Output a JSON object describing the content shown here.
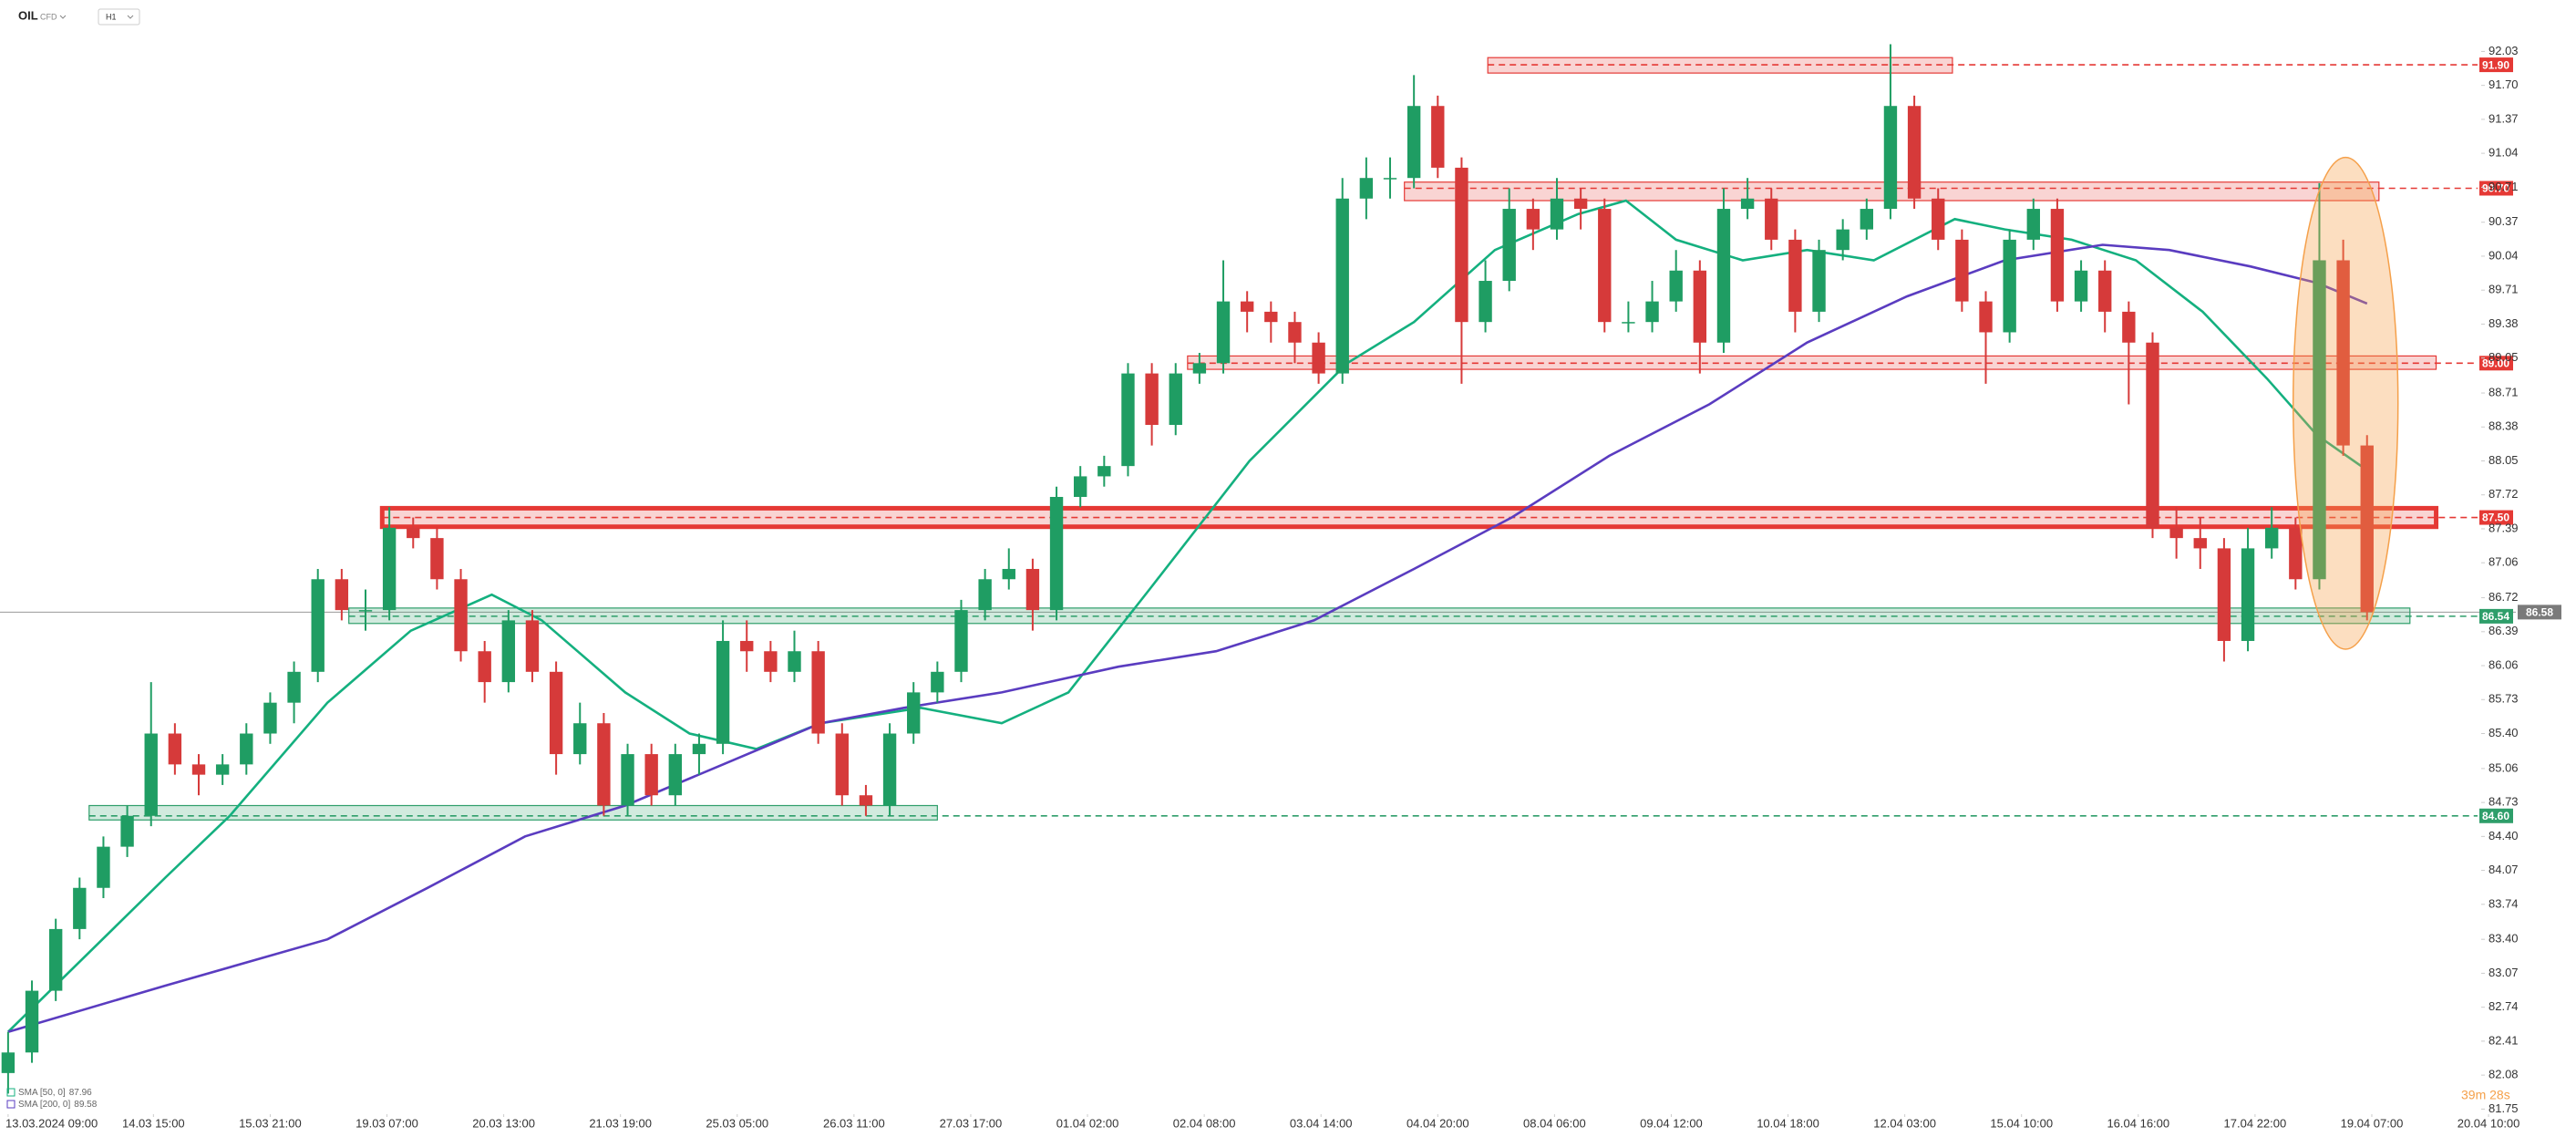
{
  "chart_data": {
    "type": "candlestick",
    "symbol": "OIL",
    "instrument_type": "CFD",
    "timeframe": "H1",
    "colors": {
      "up": "#1f9d63",
      "down": "#d63a3a"
    },
    "xlim": [
      -0.34,
      107.77
    ],
    "ylim": [
      81.7,
      92.53
    ],
    "xticks": [
      {
        "value": 0,
        "label": "13.03.2024 09:00"
      },
      {
        "value": 6.1,
        "label": "14.03 15:00"
      },
      {
        "value": 11.0,
        "label": "15.03 21:00"
      },
      {
        "value": 15.9,
        "label": "19.03 07:00"
      },
      {
        "value": 20.8,
        "label": "20.03 13:00"
      },
      {
        "value": 25.7,
        "label": "21.03 19:00"
      },
      {
        "value": 30.6,
        "label": "25.03 05:00"
      },
      {
        "value": 35.5,
        "label": "26.03 11:00"
      },
      {
        "value": 40.4,
        "label": "27.03 17:00"
      },
      {
        "value": 45.3,
        "label": "01.04 02:00"
      },
      {
        "value": 50.2,
        "label": "02.04 08:00"
      },
      {
        "value": 55.1,
        "label": "03.04 14:00"
      },
      {
        "value": 60.0,
        "label": "04.04 20:00"
      },
      {
        "value": 64.9,
        "label": "08.04 06:00"
      },
      {
        "value": 69.8,
        "label": "09.04 12:00"
      },
      {
        "value": 74.7,
        "label": "10.04 18:00"
      },
      {
        "value": 79.6,
        "label": "12.04 03:00"
      },
      {
        "value": 84.5,
        "label": "15.04 10:00"
      },
      {
        "value": 89.4,
        "label": "16.04 16:00"
      },
      {
        "value": 94.3,
        "label": "17.04 22:00"
      },
      {
        "value": 99.2,
        "label": "19.04 07:00"
      },
      {
        "value": 104.1,
        "label": "20.04 10:00"
      }
    ],
    "yticks": [
      92.03,
      {
        "value": 91.7,
        "label": "91.70"
      },
      91.37,
      91.04,
      90.71,
      90.37,
      90.04,
      89.71,
      89.38,
      89.05,
      88.71,
      88.38,
      88.05,
      87.72,
      87.39,
      87.06,
      86.72,
      86.39,
      86.06,
      85.73,
      {
        "value": 85.4,
        "label": "85.40"
      },
      85.06,
      84.73,
      {
        "value": 84.4,
        "label": "84.40"
      },
      84.07,
      83.74,
      {
        "value": 83.4,
        "label": "83.40"
      },
      83.07,
      82.74,
      82.41,
      82.08,
      81.75
    ],
    "candles": [
      [
        82.1,
        82.5,
        81.9,
        82.3
      ],
      [
        82.3,
        83.0,
        82.2,
        82.9
      ],
      [
        82.9,
        83.6,
        82.8,
        83.5
      ],
      [
        83.5,
        84.0,
        83.4,
        83.9
      ],
      [
        83.9,
        84.4,
        83.8,
        84.3
      ],
      [
        84.3,
        84.7,
        84.2,
        84.6
      ],
      [
        84.6,
        85.9,
        84.5,
        85.4
      ],
      [
        85.4,
        85.5,
        85.0,
        85.1
      ],
      [
        85.1,
        85.2,
        84.8,
        85.0
      ],
      [
        85.0,
        85.2,
        84.9,
        85.1
      ],
      [
        85.1,
        85.5,
        85.0,
        85.4
      ],
      [
        85.4,
        85.8,
        85.3,
        85.7
      ],
      [
        85.7,
        86.1,
        85.5,
        86.0
      ],
      [
        86.0,
        87.0,
        85.9,
        86.9
      ],
      [
        86.9,
        87.0,
        86.5,
        86.6
      ],
      [
        86.6,
        86.8,
        86.4,
        86.6
      ],
      [
        86.6,
        87.6,
        86.5,
        87.4
      ],
      [
        87.4,
        87.5,
        87.2,
        87.3
      ],
      [
        87.3,
        87.4,
        86.8,
        86.9
      ],
      [
        86.9,
        87.0,
        86.1,
        86.2
      ],
      [
        86.2,
        86.3,
        85.7,
        85.9
      ],
      [
        85.9,
        86.6,
        85.8,
        86.5
      ],
      [
        86.5,
        86.6,
        85.9,
        86.0
      ],
      [
        86.0,
        86.1,
        85.0,
        85.2
      ],
      [
        85.2,
        85.7,
        85.1,
        85.5
      ],
      [
        85.5,
        85.6,
        84.6,
        84.7
      ],
      [
        84.7,
        85.3,
        84.6,
        85.2
      ],
      [
        85.2,
        85.3,
        84.7,
        84.8
      ],
      [
        84.8,
        85.3,
        84.7,
        85.2
      ],
      [
        85.2,
        85.4,
        85.0,
        85.3
      ],
      [
        85.3,
        86.5,
        85.2,
        86.3
      ],
      [
        86.3,
        86.5,
        86.0,
        86.2
      ],
      [
        86.2,
        86.3,
        85.9,
        86.0
      ],
      [
        86.0,
        86.4,
        85.9,
        86.2
      ],
      [
        86.2,
        86.3,
        85.3,
        85.4
      ],
      [
        85.4,
        85.5,
        84.7,
        84.8
      ],
      [
        84.8,
        84.9,
        84.6,
        84.7
      ],
      [
        84.7,
        85.5,
        84.6,
        85.4
      ],
      [
        85.4,
        85.9,
        85.3,
        85.8
      ],
      [
        85.8,
        86.1,
        85.7,
        86.0
      ],
      [
        86.0,
        86.7,
        85.9,
        86.6
      ],
      [
        86.6,
        87.0,
        86.5,
        86.9
      ],
      [
        86.9,
        87.2,
        86.8,
        87.0
      ],
      [
        87.0,
        87.1,
        86.4,
        86.6
      ],
      [
        86.6,
        87.8,
        86.5,
        87.7
      ],
      [
        87.7,
        88.0,
        87.6,
        87.9
      ],
      [
        87.9,
        88.1,
        87.8,
        88.0
      ],
      [
        88.0,
        89.0,
        87.9,
        88.9
      ],
      [
        88.9,
        89.0,
        88.2,
        88.4
      ],
      [
        88.4,
        89.0,
        88.3,
        88.9
      ],
      [
        88.9,
        89.1,
        88.8,
        89.0
      ],
      [
        89.0,
        90.0,
        88.9,
        89.6
      ],
      [
        89.6,
        89.7,
        89.3,
        89.5
      ],
      [
        89.5,
        89.6,
        89.2,
        89.4
      ],
      [
        89.4,
        89.5,
        89.0,
        89.2
      ],
      [
        89.2,
        89.3,
        88.8,
        88.9
      ],
      [
        88.9,
        90.8,
        88.8,
        90.6
      ],
      [
        90.6,
        91.0,
        90.4,
        90.8
      ],
      [
        90.8,
        91.0,
        90.6,
        90.8
      ],
      [
        90.8,
        91.8,
        90.7,
        91.5
      ],
      [
        91.5,
        91.6,
        90.8,
        90.9
      ],
      [
        90.9,
        91.0,
        88.8,
        89.4
      ],
      [
        89.4,
        90.0,
        89.3,
        89.8
      ],
      [
        89.8,
        90.7,
        89.7,
        90.5
      ],
      [
        90.5,
        90.6,
        90.1,
        90.3
      ],
      [
        90.3,
        90.8,
        90.2,
        90.6
      ],
      [
        90.6,
        90.7,
        90.3,
        90.5
      ],
      [
        90.5,
        90.6,
        89.3,
        89.4
      ],
      [
        89.4,
        89.6,
        89.3,
        89.4
      ],
      [
        89.4,
        89.8,
        89.3,
        89.6
      ],
      [
        89.6,
        90.1,
        89.5,
        89.9
      ],
      [
        89.9,
        90.0,
        88.9,
        89.2
      ],
      [
        89.2,
        90.7,
        89.1,
        90.5
      ],
      [
        90.5,
        90.8,
        90.4,
        90.6
      ],
      [
        90.6,
        90.7,
        90.1,
        90.2
      ],
      [
        90.2,
        90.3,
        89.3,
        89.5
      ],
      [
        89.5,
        90.2,
        89.4,
        90.1
      ],
      [
        90.1,
        90.4,
        90.0,
        90.3
      ],
      [
        90.3,
        90.6,
        90.2,
        90.5
      ],
      [
        90.5,
        92.1,
        90.4,
        91.5
      ],
      [
        91.5,
        91.6,
        90.5,
        90.6
      ],
      [
        90.6,
        90.7,
        90.1,
        90.2
      ],
      [
        90.2,
        90.3,
        89.5,
        89.6
      ],
      [
        89.6,
        89.7,
        88.8,
        89.3
      ],
      [
        89.3,
        90.3,
        89.2,
        90.2
      ],
      [
        90.2,
        90.6,
        90.1,
        90.5
      ],
      [
        90.5,
        90.6,
        89.5,
        89.6
      ],
      [
        89.6,
        90.0,
        89.5,
        89.9
      ],
      [
        89.9,
        90.0,
        89.3,
        89.5
      ],
      [
        89.5,
        89.6,
        88.6,
        89.2
      ],
      [
        89.2,
        89.3,
        87.3,
        87.4
      ],
      [
        87.4,
        87.6,
        87.1,
        87.3
      ],
      [
        87.3,
        87.5,
        87.0,
        87.2
      ],
      [
        87.2,
        87.3,
        86.1,
        86.3
      ],
      [
        86.3,
        87.4,
        86.2,
        87.2
      ],
      [
        87.2,
        87.6,
        87.1,
        87.4
      ],
      [
        87.4,
        87.5,
        86.8,
        86.9
      ],
      [
        86.9,
        90.75,
        86.8,
        90.0
      ],
      [
        90.0,
        90.2,
        88.1,
        88.2
      ],
      [
        88.2,
        88.3,
        86.5,
        86.58
      ]
    ],
    "series": [
      {
        "name": "SMA [50, 0]",
        "color": "#14b07f",
        "x": [
          0,
          6.6,
          9.3,
          13.4,
          16.9,
          20.3,
          22.4,
          25.9,
          28.6,
          31.4,
          34.1,
          38.3,
          41.7,
          44.5,
          47.9,
          52.1,
          56.2,
          59,
          62.4,
          65.9,
          67.9,
          70,
          72.8,
          75.5,
          78.3,
          81.7,
          83.8,
          86.6,
          89.3,
          92.1,
          94.8,
          96.9,
          99
        ],
        "values": [
          82.5,
          84.0,
          84.6,
          85.7,
          86.4,
          86.75,
          86.5,
          85.8,
          85.4,
          85.25,
          85.5,
          85.65,
          85.5,
          85.8,
          86.8,
          88.05,
          89.0,
          89.4,
          90.1,
          90.45,
          90.58,
          90.2,
          90.0,
          90.1,
          90.0,
          90.4,
          90.3,
          90.2,
          90.0,
          89.5,
          88.85,
          88.3,
          87.96
        ]
      },
      {
        "name": "SMA [200, 0]",
        "color": "#5a3cc0",
        "x": [
          0,
          6.6,
          13.4,
          17.6,
          21.7,
          25.9,
          30,
          34.1,
          37.6,
          41.7,
          46.6,
          50.7,
          54.8,
          59,
          63.1,
          67.2,
          71.4,
          75.5,
          79.7,
          83.8,
          87.9,
          90.7,
          94.1,
          96.9,
          99
        ],
        "values": [
          82.5,
          82.95,
          83.4,
          83.9,
          84.4,
          84.7,
          85.1,
          85.5,
          85.65,
          85.8,
          86.05,
          86.2,
          86.5,
          87.0,
          87.5,
          88.1,
          88.6,
          89.2,
          89.65,
          90.0,
          90.15,
          90.1,
          89.94,
          89.78,
          89.58
        ]
      }
    ],
    "levels": [
      {
        "value": 91.9,
        "label": "91.90",
        "color": "#e53935",
        "zone": [
          91.82,
          91.97
        ],
        "span": [
          62.1,
          81.6
        ]
      },
      {
        "value": 90.7,
        "label": "90.70",
        "color": "#e53935",
        "zone": [
          90.58,
          90.76
        ],
        "span": [
          58.6,
          99.5
        ]
      },
      {
        "value": 89,
        "label": "89.00",
        "color": "#e53935",
        "zone": [
          88.94,
          89.07
        ],
        "span": [
          49.5,
          101.9
        ]
      },
      {
        "value": 87.5,
        "label": "87.50",
        "color": "#e53935",
        "zone": [
          87.41,
          87.59
        ],
        "span": [
          15.7,
          101.9
        ],
        "emphasis": true
      },
      {
        "value": 86.54,
        "label": "86.54",
        "color": "#2e9e6a",
        "zone": [
          86.47,
          86.62
        ],
        "span": [
          14.3,
          100.8
        ]
      },
      {
        "value": 84.6,
        "label": "84.60",
        "color": "#2e9e6a",
        "zone": [
          84.56,
          84.7
        ],
        "span": [
          3.4,
          39
        ]
      }
    ],
    "current_price": 86.58,
    "highlight": {
      "x": [
        95.9,
        100.3
      ],
      "y": [
        86.22,
        91.0
      ],
      "color": "#f5a04a"
    },
    "countdown": "39m 28s"
  }
}
